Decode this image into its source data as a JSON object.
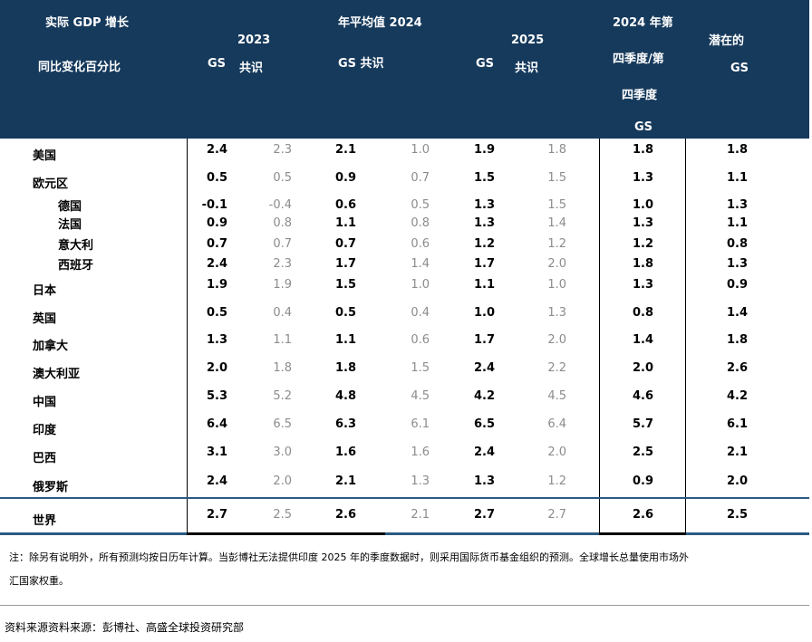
{
  "header": {
    "row_title_1": "实际 GDP 增长",
    "row_title_2": "同比变化百分比",
    "year_2023": "2023",
    "gs_2023": "GS",
    "consensus_2023": "共识",
    "annual_avg_2024": "年平均值 2024",
    "gs_consensus_2024": "GS 共识",
    "year_2025": "2025",
    "gs_2025": "GS",
    "consensus_2025": "共识",
    "q4_line1": "2024 年第",
    "q4_line2": "四季度/第",
    "q4_line3": "四季度",
    "q4_line4": "GS",
    "potential_line1": "潜在的",
    "potential_line2": "GS"
  },
  "rows": [
    {
      "name": "美国",
      "indent": false,
      "v": [
        "2.4",
        "2.3",
        "2.1",
        "1.0",
        "1.9",
        "1.8",
        "1.8",
        "1.8"
      ]
    },
    {
      "name": "欧元区",
      "indent": false,
      "v": [
        "0.5",
        "0.5",
        "0.9",
        "0.7",
        "1.5",
        "1.5",
        "1.3",
        "1.1"
      ]
    },
    {
      "name": "德国",
      "indent": true,
      "v": [
        "-0.1",
        "-0.4",
        "0.6",
        "0.5",
        "1.3",
        "1.5",
        "1.0",
        "1.3"
      ]
    },
    {
      "name": "法国",
      "indent": true,
      "v": [
        "0.9",
        "0.8",
        "1.1",
        "0.8",
        "1.3",
        "1.4",
        "1.3",
        "1.1"
      ]
    },
    {
      "name": "意大利",
      "indent": true,
      "v": [
        "0.7",
        "0.7",
        "0.7",
        "0.6",
        "1.2",
        "1.2",
        "1.2",
        "0.8"
      ]
    },
    {
      "name": "西班牙",
      "indent": true,
      "v": [
        "2.4",
        "2.3",
        "1.7",
        "1.4",
        "1.7",
        "2.0",
        "1.8",
        "1.3"
      ]
    },
    {
      "name": "日本",
      "indent": false,
      "v": [
        "1.9",
        "1.9",
        "1.5",
        "1.0",
        "1.1",
        "1.0",
        "1.3",
        "0.9"
      ]
    },
    {
      "name": "英国",
      "indent": false,
      "v": [
        "0.5",
        "0.4",
        "0.5",
        "0.4",
        "1.0",
        "1.3",
        "0.8",
        "1.4"
      ]
    },
    {
      "name": "加拿大",
      "indent": false,
      "v": [
        "1.3",
        "1.1",
        "1.1",
        "0.6",
        "1.7",
        "2.0",
        "1.4",
        "1.8"
      ]
    },
    {
      "name": "澳大利亚",
      "indent": false,
      "v": [
        "2.0",
        "1.8",
        "1.8",
        "1.5",
        "2.4",
        "2.2",
        "2.0",
        "2.6"
      ]
    },
    {
      "name": "中国",
      "indent": false,
      "v": [
        "5.3",
        "5.2",
        "4.8",
        "4.5",
        "4.2",
        "4.5",
        "4.6",
        "4.2"
      ]
    },
    {
      "name": "印度",
      "indent": false,
      "v": [
        "6.4",
        "6.5",
        "6.3",
        "6.1",
        "6.5",
        "6.4",
        "5.7",
        "6.1"
      ]
    },
    {
      "name": "巴西",
      "indent": false,
      "v": [
        "3.1",
        "3.0",
        "1.6",
        "1.6",
        "2.4",
        "2.0",
        "2.5",
        "2.1"
      ]
    },
    {
      "name": "俄罗斯",
      "indent": false,
      "v": [
        "2.4",
        "2.0",
        "2.1",
        "1.3",
        "1.3",
        "1.2",
        "0.9",
        "2.0"
      ]
    }
  ],
  "world": {
    "name": "世界",
    "v": [
      "2.7",
      "2.5",
      "2.6",
      "2.1",
      "2.7",
      "2.7",
      "2.6",
      "2.5"
    ]
  },
  "note_line1": "注：除另有说明外，所有预测均按日历年计算。当彭博社无法提供印度 2025 年的季度数据时，则采用国际货币基金组织的预测。全球增长总量使用市场外",
  "note_line2": "汇国家权重。",
  "source": "资料来源资料来源：彭博社、高盛全球投资研究部",
  "colors": {
    "header_bg": "#163a5c",
    "consensus_text": "#8c8c8c",
    "accent_line": "#2a5a82"
  }
}
